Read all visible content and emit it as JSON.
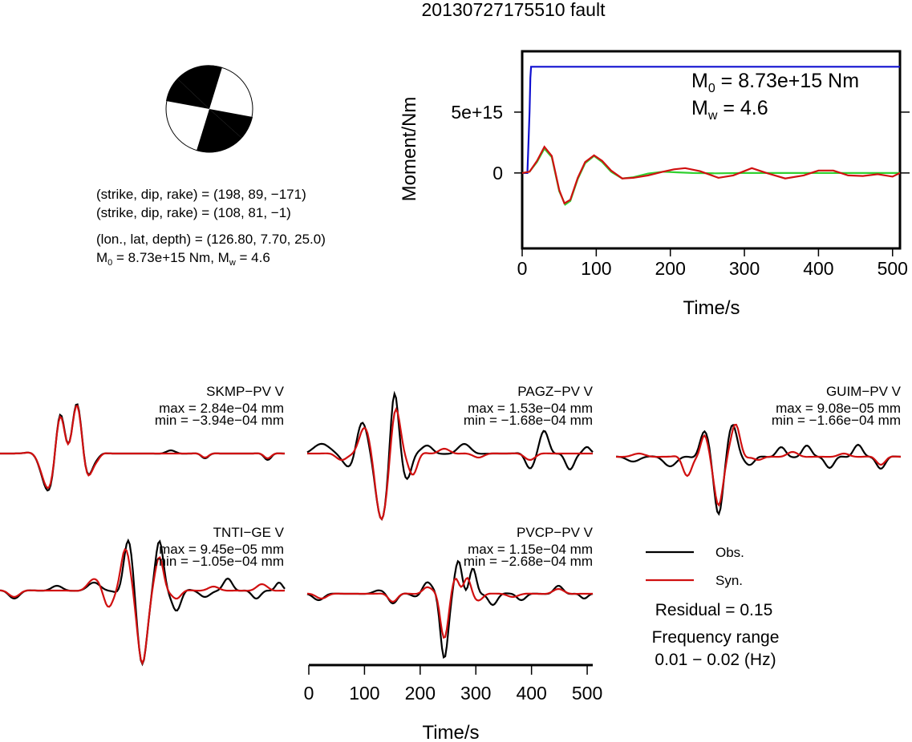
{
  "title": "20130727175510 fault",
  "beachball": {
    "line1": "(strike, dip, rake) = (198, 89, −171)",
    "line2": "(strike, dip, rake) = (108, 81, −1)",
    "line3": "(lon., lat, depth) = (126.80, 7.70, 25.0)",
    "line4_m0": "M",
    "line4_m0_sub": "0",
    "line4_m0_rest": " = 8.73e+15 Nm, M",
    "line4_mw_sub": "w",
    "line4_mw_rest": " = 4.6"
  },
  "moment_plot": {
    "ylabel": "Moment/Nm",
    "xlabel": "Time/s",
    "m0_symbol": "M",
    "m0_sub": "0",
    "m0_text": " = 8.73e+15 Nm",
    "mw_symbol": "M",
    "mw_sub": "w",
    "mw_text": " = 4.6",
    "colors": {
      "moment": "#1010d0",
      "rate_green": "#30d030",
      "rate_red": "#d01010"
    }
  },
  "waveforms": {
    "xlabel": "Time/s",
    "legend_obs": "Obs.",
    "legend_syn": "Syn.",
    "residual": "Residual = 0.15",
    "freq_label": "Frequency range",
    "freq_value": "0.01 − 0.02 (Hz)",
    "colors": {
      "obs": "#000000",
      "syn": "#d01010"
    },
    "stations": [
      {
        "name": "SKMP−PV V",
        "max": "max = 2.84e−04 mm",
        "min": "min = −3.94e−04 mm"
      },
      {
        "name": "PAGZ−PV V",
        "max": "max = 1.53e−04 mm",
        "min": "min = −1.68e−04 mm"
      },
      {
        "name": "GUIM−PV V",
        "max": "max = 9.08e−05 mm",
        "min": "min = −1.66e−04 mm"
      },
      {
        "name": "TNTI−GE V",
        "max": "max = 9.45e−05 mm",
        "min": "min = −1.05e−04 mm"
      },
      {
        "name": "PVCP−PV V",
        "max": "max = 1.15e−04 mm",
        "min": "min = −2.68e−04 mm"
      }
    ]
  },
  "chart_data": [
    {
      "type": "line",
      "title": "20130727175510 fault",
      "xlabel": "Time/s",
      "ylabel": "Moment/Nm",
      "xlim": [
        0,
        510
      ],
      "ylim": [
        -6200000000000000.0,
        1e+16
      ],
      "xticks": [
        0,
        100,
        200,
        300,
        400,
        500
      ],
      "yticks": [
        0,
        5000000000000000.0
      ],
      "ytick_labels": [
        "0",
        "5e+15"
      ],
      "series": [
        {
          "color": "#1010d0",
          "x": [
            0,
            7,
            8,
            10,
            11,
            12,
            510
          ],
          "y": [
            0,
            0,
            1600000000000000.0,
            5000000000000000.0,
            7800000000000000.0,
            8730000000000000.0,
            8730000000000000.0
          ]
        },
        {
          "color": "#30d030",
          "x": [
            0,
            10,
            20,
            30,
            40,
            50,
            58,
            65,
            75,
            85,
            97,
            108,
            120,
            135,
            150,
            170,
            190,
            210,
            230,
            260,
            300,
            350,
            400,
            450,
            510
          ],
          "y": [
            0,
            100000000000000.0,
            900000000000000.0,
            2000000000000000.0,
            1300000000000000.0,
            -1500000000000000.0,
            -2600000000000000.0,
            -2300000000000000.0,
            -500000000000000.0,
            800000000000000.0,
            1400000000000000.0,
            900000000000000.0,
            100000000000000.0,
            -450000000000000.0,
            -350000000000000.0,
            -50000000000000.0,
            100000000000000.0,
            50000000000000.0,
            0.0,
            -30000000000000.0,
            0.0,
            0.0,
            0.0,
            0.0,
            0.0
          ]
        },
        {
          "color": "#d01010",
          "x": [
            0,
            10,
            20,
            30,
            40,
            50,
            57,
            65,
            75,
            85,
            97,
            108,
            120,
            135,
            150,
            170,
            190,
            205,
            220,
            240,
            265,
            285,
            310,
            330,
            355,
            380,
            400,
            420,
            440,
            460,
            480,
            500,
            510
          ],
          "y": [
            0,
            100000000000000.0,
            1000000000000000.0,
            2150000000000000.0,
            1400000000000000.0,
            -1400000000000000.0,
            -2500000000000000.0,
            -2200000000000000.0,
            -400000000000000.0,
            900000000000000.0,
            1450000000000000.0,
            1000000000000000.0,
            200000000000000.0,
            -450000000000000.0,
            -400000000000000.0,
            -200000000000000.0,
            100000000000000.0,
            300000000000000.0,
            400000000000000.0,
            150000000000000.0,
            -400000000000000.0,
            -200000000000000.0,
            400000000000000.0,
            0.0,
            -450000000000000.0,
            -200000000000000.0,
            200000000000000.0,
            200000000000000.0,
            -200000000000000.0,
            -250000000000000.0,
            -100000000000000.0,
            -300000000000000.0,
            0.0
          ]
        }
      ]
    },
    {
      "type": "line",
      "xlabel": "Time/s",
      "xlim": [
        0,
        510
      ],
      "xticks": [
        0,
        100,
        200,
        300,
        400,
        500
      ],
      "series": [
        {
          "name": "Obs.",
          "color": "#000000"
        },
        {
          "name": "Syn.",
          "color": "#d01010"
        }
      ],
      "residual": 0.15,
      "frequency_range_hz": [
        0.01,
        0.02
      ]
    }
  ]
}
